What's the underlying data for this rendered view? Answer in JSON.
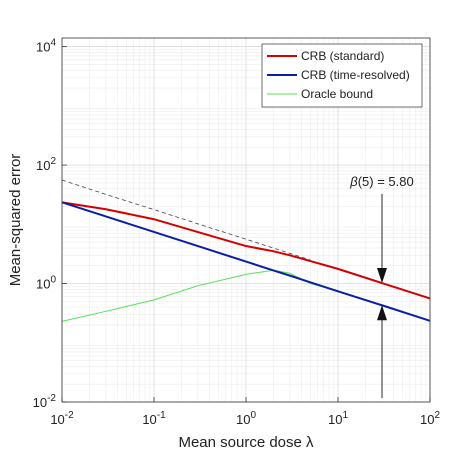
{
  "chart_data": {
    "type": "line",
    "xlabel": "Mean source dose λ",
    "ylabel": "Mean-squared error",
    "log_x": true,
    "log_y": true,
    "grid": true,
    "legend": "upper right",
    "x": [
      0.01,
      0.03,
      0.1,
      0.3,
      1,
      2,
      3,
      5,
      10,
      30,
      100
    ],
    "series": [
      {
        "name": "CRB (standard)",
        "color": "#d40000",
        "values": [
          23.5,
          18,
          12.2,
          7.4,
          4.3,
          3.5,
          3.0,
          2.4,
          1.77,
          1.02,
          0.56
        ]
      },
      {
        "name": "CRB (time-resolved)",
        "color": "#0a1fa8",
        "values": [
          23.5,
          13.6,
          7.43,
          4.29,
          2.35,
          1.66,
          1.36,
          1.05,
          0.74,
          0.43,
          0.235
        ]
      },
      {
        "name": "Oracle bound",
        "color": "#55e055",
        "values": [
          0.23,
          0.34,
          0.53,
          0.92,
          1.43,
          1.68,
          1.49,
          1.0,
          0.74,
          0.43,
          0.235
        ]
      },
      {
        "color": "#444444",
        "dashed": true,
        "values": [
          56,
          32,
          17.7,
          10.2,
          5.6,
          3.96,
          3.23,
          2.5,
          null,
          null,
          null
        ]
      }
    ],
    "annotation": "β(5) = 5.80",
    "xlim": [
      0.01,
      100
    ],
    "ylim": [
      0.01,
      14000
    ],
    "xticks": [
      {
        "value": 0.01,
        "label": "10^-2"
      },
      {
        "value": 0.1,
        "label": "10^-1"
      },
      {
        "value": 1,
        "label": "10^0"
      },
      {
        "value": 10,
        "label": "10^1"
      },
      {
        "value": 100,
        "label": "10^2"
      }
    ],
    "yticks": [
      {
        "value": 0.01,
        "label": "10^-2"
      },
      {
        "value": 1,
        "label": "10^0"
      },
      {
        "value": 100,
        "label": "10^2"
      },
      {
        "value": 10000,
        "label": "10^4"
      }
    ]
  }
}
